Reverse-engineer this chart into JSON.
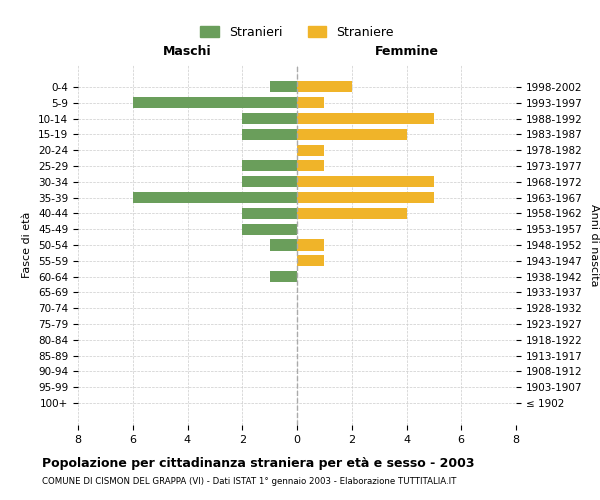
{
  "age_groups": [
    "100+",
    "95-99",
    "90-94",
    "85-89",
    "80-84",
    "75-79",
    "70-74",
    "65-69",
    "60-64",
    "55-59",
    "50-54",
    "45-49",
    "40-44",
    "35-39",
    "30-34",
    "25-29",
    "20-24",
    "15-19",
    "10-14",
    "5-9",
    "0-4"
  ],
  "birth_years": [
    "≤ 1902",
    "1903-1907",
    "1908-1912",
    "1913-1917",
    "1918-1922",
    "1923-1927",
    "1928-1932",
    "1933-1937",
    "1938-1942",
    "1943-1947",
    "1948-1952",
    "1953-1957",
    "1958-1962",
    "1963-1967",
    "1968-1972",
    "1973-1977",
    "1978-1982",
    "1983-1987",
    "1988-1992",
    "1993-1997",
    "1998-2002"
  ],
  "males": [
    0,
    0,
    0,
    0,
    0,
    0,
    0,
    0,
    1,
    0,
    1,
    2,
    2,
    6,
    2,
    2,
    0,
    2,
    2,
    6,
    1
  ],
  "females": [
    0,
    0,
    0,
    0,
    0,
    0,
    0,
    0,
    0,
    1,
    1,
    0,
    4,
    5,
    5,
    1,
    1,
    4,
    5,
    1,
    2
  ],
  "male_color": "#6a9e5b",
  "female_color": "#f0b429",
  "male_label": "Stranieri",
  "female_label": "Straniere",
  "title": "Popolazione per cittadinanza straniera per età e sesso - 2003",
  "subtitle": "COMUNE DI CISMON DEL GRAPPA (VI) - Dati ISTAT 1° gennaio 2003 - Elaborazione TUTTITALIA.IT",
  "xlabel_left": "Maschi",
  "xlabel_right": "Femmine",
  "ylabel_left": "Fasce di età",
  "ylabel_right": "Anni di nascita",
  "xlim": 8,
  "background_color": "#ffffff",
  "grid_color": "#cccccc"
}
